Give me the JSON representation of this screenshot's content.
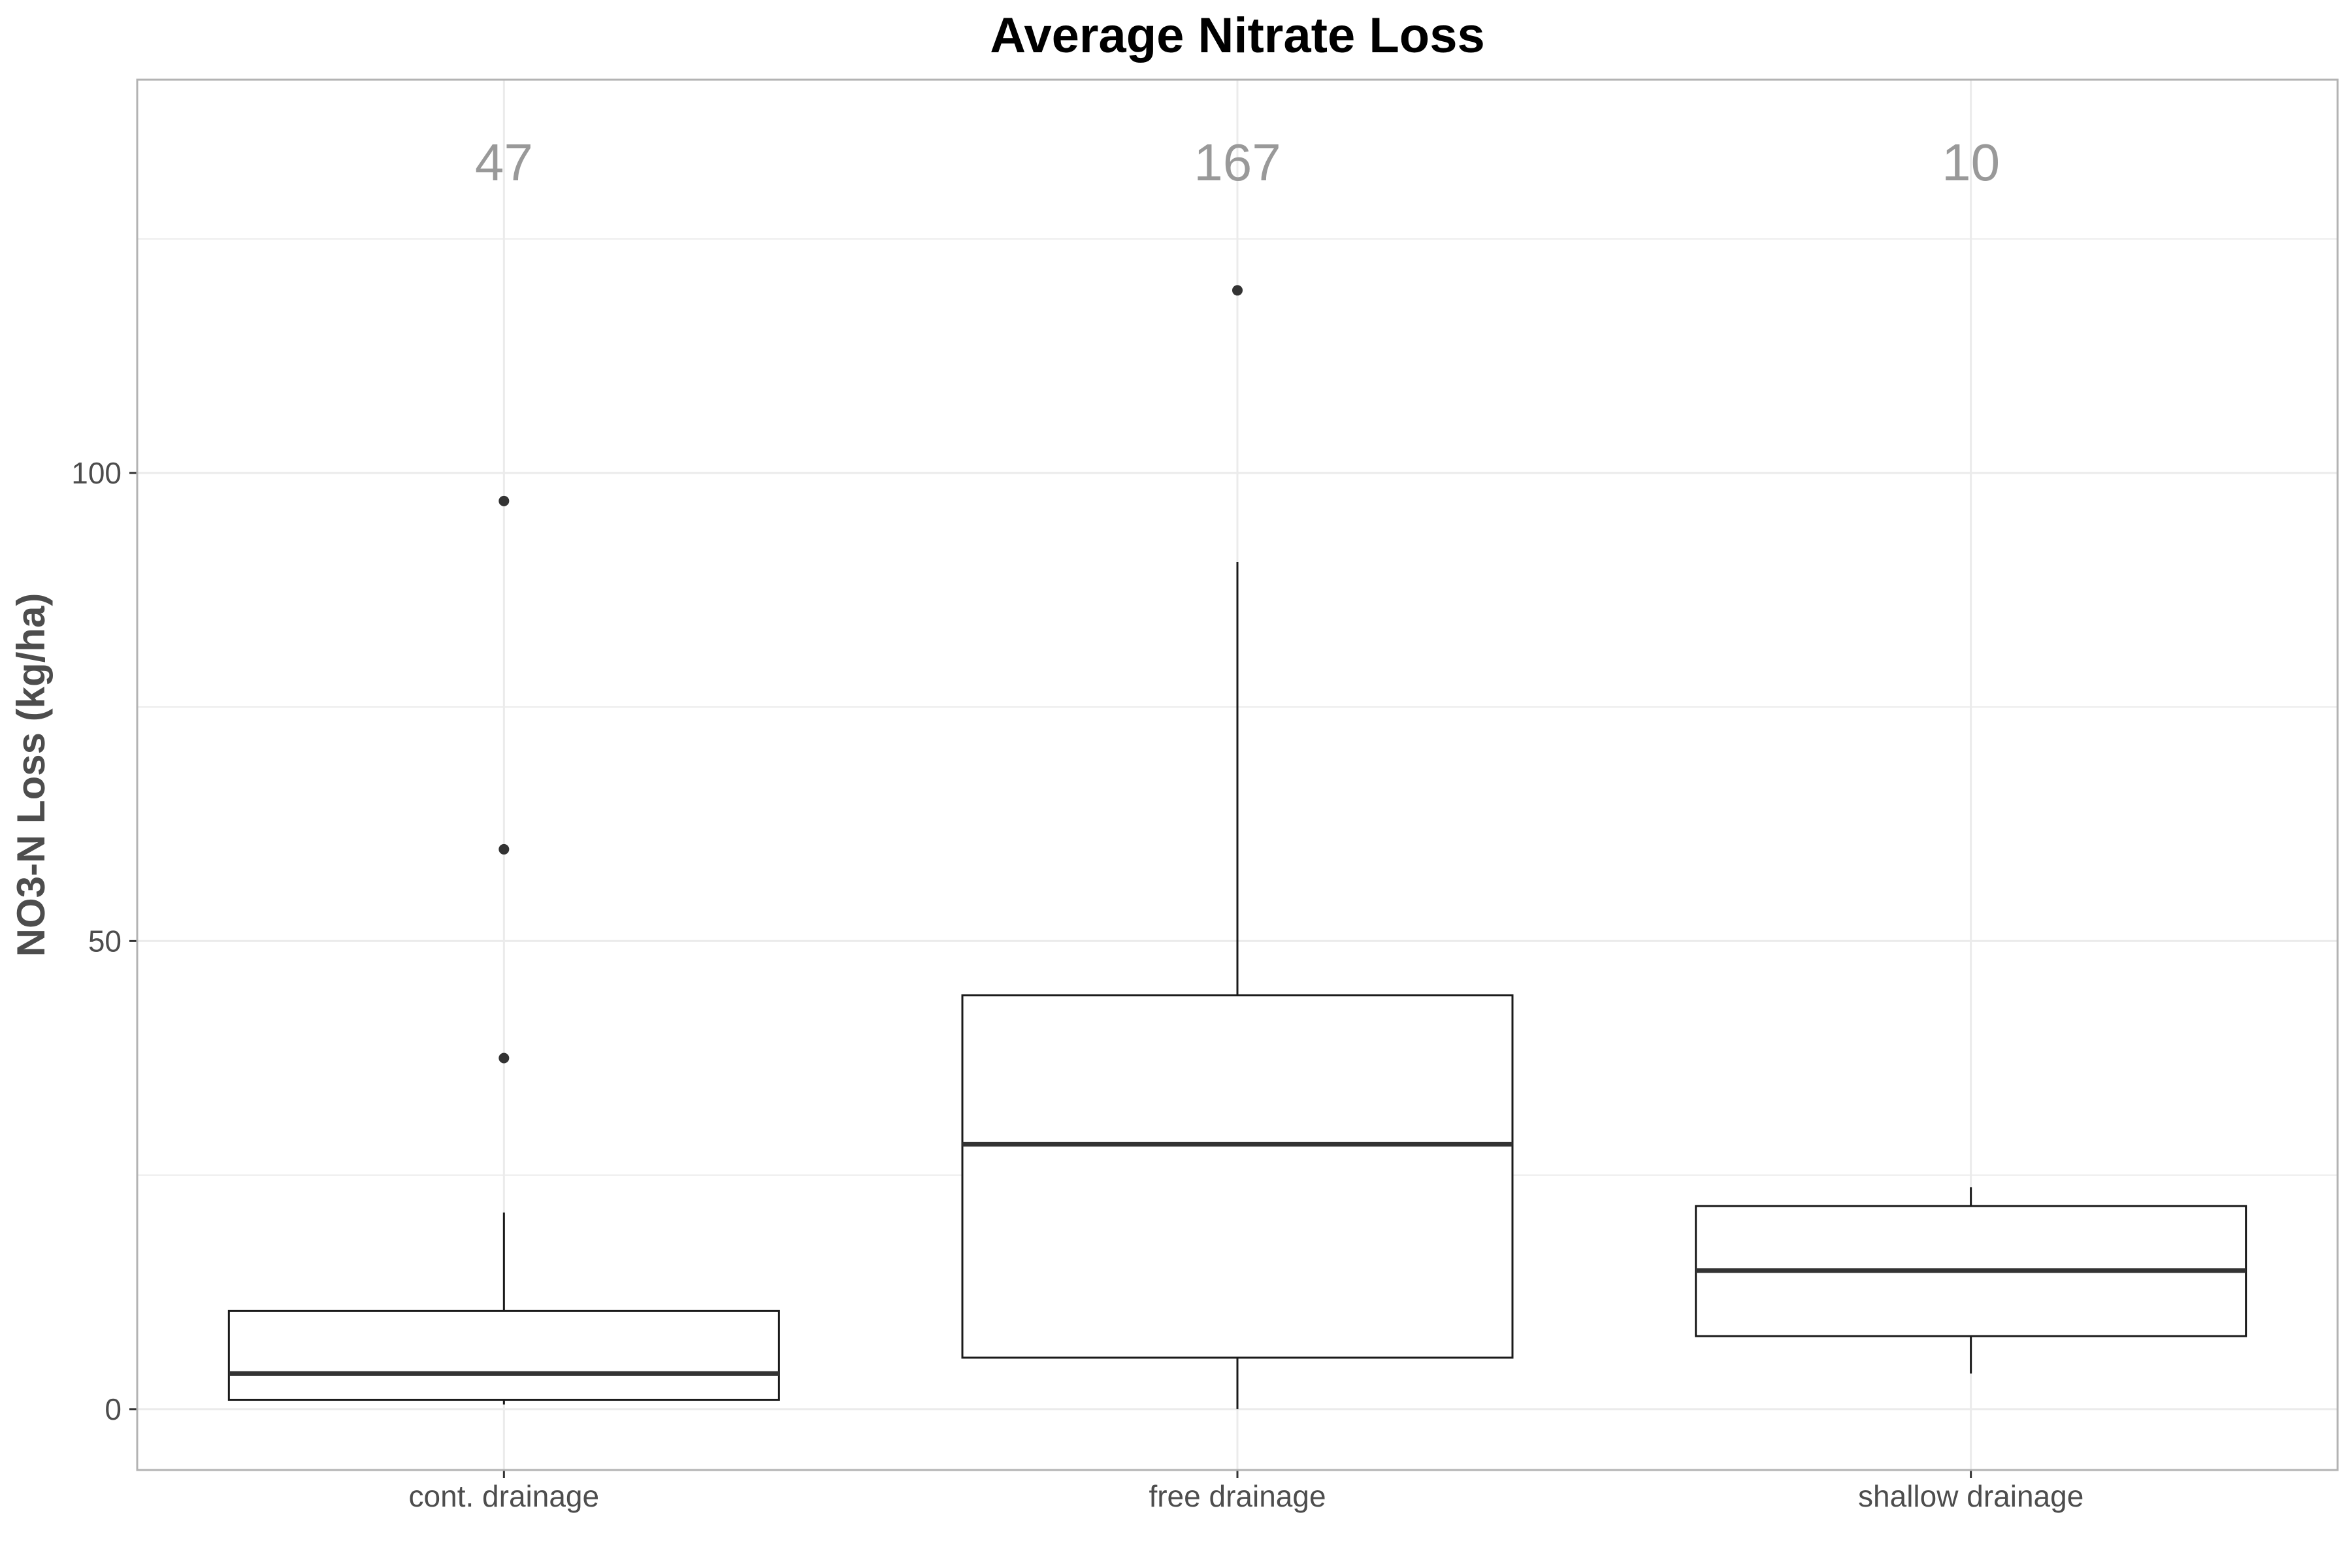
{
  "chart_data": {
    "type": "boxplot",
    "title": "Average Nitrate Loss",
    "xlabel": "",
    "ylabel": "NO3-N Loss (kg/ha)",
    "ylim": [
      -6.5,
      142
    ],
    "yticks": [
      0,
      50,
      100
    ],
    "grid": true,
    "categories": [
      "cont. drainage",
      "free drainage",
      "shallow drainage"
    ],
    "counts": [
      "47",
      "167",
      "10"
    ],
    "boxes": [
      {
        "category": "cont. drainage",
        "whisker_low": 0.5,
        "q1": 1,
        "median": 3.8,
        "q3": 10.5,
        "whisker_high": 21,
        "outliers": [
          37.5,
          59.8,
          97
        ]
      },
      {
        "category": "free drainage",
        "whisker_low": 0,
        "q1": 5.5,
        "median": 28.3,
        "q3": 44.2,
        "whisker_high": 90.5,
        "outliers": [
          119.5
        ]
      },
      {
        "category": "shallow drainage",
        "whisker_low": 3.8,
        "q1": 7.8,
        "median": 14.8,
        "q3": 21.7,
        "whisker_high": 23.7,
        "outliers": []
      }
    ],
    "colors": {
      "box_stroke": "#1a1a1a",
      "outlier": "#333333",
      "grid": "#ebebeb",
      "panel_border": "#b3b3b3",
      "count_label": "#999999"
    }
  }
}
